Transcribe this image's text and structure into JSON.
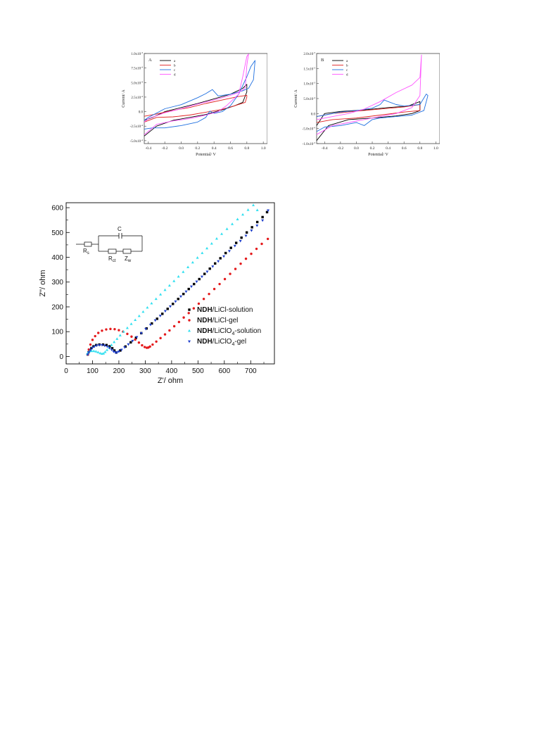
{
  "charts": {
    "cvA": {
      "letter": "A",
      "xlabel": "Potential/ V",
      "ylabel": "Current/ A",
      "xticks": [
        "-0.4",
        "-0.2",
        "0.0",
        "0.2",
        "0.4",
        "0.6",
        "0.8",
        "1.0"
      ],
      "ytick_mantissa": [
        "-5.0x10",
        "-2.5x10",
        "0.0",
        "2.5x10",
        "5.0x10",
        "7.5x10",
        "1.0x10"
      ],
      "ytick_exp": [
        "-4",
        "-4",
        "",
        "-4",
        "-4",
        "-4",
        "-3"
      ]
    },
    "cvB": {
      "letter": "B",
      "xlabel": "Potential/ V",
      "ylabel": "Current/ A",
      "xticks": [
        "-0.4",
        "-0.2",
        "0.0",
        "0.2",
        "0.4",
        "0.6",
        "0.8",
        "1.0"
      ],
      "ytick_mantissa": [
        "-1.0x10",
        "-5.0x10",
        "0.0",
        "5.0x10",
        "1.0x10",
        "1.5x10",
        "2.0x10"
      ],
      "ytick_exp": [
        "-3",
        "-4",
        "",
        "-4",
        "-3",
        "-3",
        "-3"
      ]
    },
    "eis": {
      "xlabel": "Z'/ ohm",
      "ylabel": "Z\"/ ohm",
      "xticks": [
        "0",
        "100",
        "200",
        "300",
        "400",
        "500",
        "600",
        "700"
      ],
      "yticks": [
        "0",
        "100",
        "200",
        "300",
        "400",
        "500",
        "600"
      ],
      "circuit": {
        "c": "C",
        "rs": "R",
        "rs_sub": "s",
        "rct": "R",
        "rct_sub": "ct",
        "zw": "Z",
        "zw_sub": "w"
      }
    }
  },
  "chart_data": [
    {
      "type": "line",
      "xlim": [
        -0.45,
        1.05
      ],
      "ylim": [
        -0.00055,
        0.001
      ],
      "legend_position": "top-left",
      "series": [
        {
          "name": "a",
          "color": "#000000",
          "x": [
            -0.45,
            -0.3,
            -0.1,
            0.1,
            0.3,
            0.5,
            0.65,
            0.75,
            0.8,
            0.8,
            0.75,
            0.6,
            0.4,
            0.2,
            0.0,
            -0.2,
            -0.35,
            -0.45
          ],
          "y": [
            -0.00042,
            -0.00025,
            -0.00015,
            -0.0001,
            -5e-05,
            3e-05,
            0.0001,
            0.00016,
            0.00034,
            0.00047,
            0.0004,
            0.0003,
            0.00022,
            0.00014,
            7e-05,
            0.0,
            -0.0001,
            -0.00015
          ]
        },
        {
          "name": "b",
          "color": "#e02020",
          "x": [
            -0.45,
            -0.3,
            -0.1,
            0.1,
            0.3,
            0.5,
            0.65,
            0.78,
            0.8,
            0.8,
            0.7,
            0.5,
            0.3,
            0.1,
            -0.1,
            -0.3,
            -0.45
          ],
          "y": [
            -0.00018,
            -0.0001,
            -9e-05,
            -6e-05,
            -1e-05,
            4e-05,
            0.0001,
            0.00016,
            0.00025,
            0.00028,
            0.00026,
            0.0002,
            0.00014,
            7e-05,
            2e-05,
            -4e-05,
            -8e-05
          ]
        },
        {
          "name": "c",
          "color": "#1e6fe0",
          "x": [
            -0.45,
            -0.35,
            -0.2,
            0.0,
            0.2,
            0.3,
            0.35,
            0.4,
            0.5,
            0.6,
            0.7,
            0.8,
            0.85,
            0.9,
            0.88,
            0.82,
            0.75,
            0.6,
            0.45,
            0.38,
            0.3,
            0.2,
            0.0,
            -0.2,
            -0.4,
            -0.45
          ],
          "y": [
            -0.0003,
            -0.00028,
            -0.00028,
            -0.00024,
            -0.00018,
            -0.0001,
            1e-05,
            -3e-05,
            0.0,
            0.0001,
            0.0003,
            0.0006,
            0.00078,
            0.00088,
            0.00055,
            0.0004,
            0.00036,
            0.0003,
            0.00027,
            0.00038,
            0.00031,
            0.00024,
            0.00012,
            5e-05,
            -0.0001,
            -0.00015
          ]
        },
        {
          "name": "d",
          "color": "#ff55ff",
          "x": [
            -0.45,
            -0.3,
            -0.1,
            0.1,
            0.3,
            0.45,
            0.55,
            0.7,
            0.75,
            0.8,
            0.82,
            0.8,
            0.78,
            0.7,
            0.6,
            0.4,
            0.2,
            0.0,
            -0.2,
            -0.4,
            -0.45
          ],
          "y": [
            -0.0004,
            -0.00022,
            -0.00016,
            -0.00012,
            -6e-05,
            0.0,
            0.0001,
            0.0003,
            0.0006,
            0.00095,
            0.00099,
            0.0008,
            0.0004,
            0.00033,
            0.00028,
            0.0002,
            0.00013,
            5e-05,
            -2e-05,
            -0.00012,
            -0.00018
          ]
        }
      ]
    },
    {
      "type": "line",
      "xlim": [
        -0.5,
        1.05
      ],
      "ylim": [
        -0.001,
        0.002
      ],
      "legend_position": "top-left",
      "series": [
        {
          "name": "a",
          "color": "#000000",
          "x": [
            -0.5,
            -0.35,
            -0.1,
            0.2,
            0.5,
            0.7,
            0.8,
            0.8,
            0.65,
            0.4,
            0.1,
            -0.2,
            -0.4,
            -0.5
          ],
          "y": [
            -0.0009,
            -0.0004,
            -0.0002,
            -0.00015,
            -8e-05,
            0.0,
            0.0001,
            0.0004,
            0.00025,
            0.0002,
            0.00012,
            7e-05,
            0.0,
            -0.0004
          ]
        },
        {
          "name": "b",
          "color": "#e02020",
          "x": [
            -0.5,
            -0.3,
            0.0,
            0.3,
            0.6,
            0.8,
            0.8,
            0.6,
            0.3,
            0.0,
            -0.3,
            -0.5
          ],
          "y": [
            -0.0003,
            -0.0002,
            -0.00015,
            -5e-05,
            5e-05,
            0.0001,
            0.0003,
            0.00022,
            0.00015,
            8e-05,
            0.0,
            -0.0001
          ]
        },
        {
          "name": "c",
          "color": "#1e6fe0",
          "x": [
            -0.5,
            -0.4,
            -0.2,
            0.0,
            0.1,
            0.2,
            0.3,
            0.5,
            0.7,
            0.85,
            0.9,
            0.88,
            0.8,
            0.6,
            0.5,
            0.4,
            0.35,
            0.3,
            0.2,
            0.0,
            -0.2,
            -0.4,
            -0.5
          ],
          "y": [
            -0.0006,
            -0.00045,
            -0.0004,
            -0.0003,
            -0.0004,
            -0.0002,
            -0.00015,
            -0.0001,
            -5e-05,
            0.0001,
            0.0006,
            0.00065,
            0.0003,
            0.00025,
            0.0003,
            0.0004,
            0.00045,
            0.0003,
            0.00018,
            0.0001,
            5e-05,
            -5e-05,
            -0.0001
          ]
        },
        {
          "name": "d",
          "color": "#ff55ff",
          "x": [
            -0.5,
            -0.3,
            0.0,
            0.3,
            0.5,
            0.7,
            0.8,
            0.82,
            0.8,
            0.7,
            0.5,
            0.3,
            0.1,
            -0.1,
            -0.3,
            -0.5
          ],
          "y": [
            -0.0007,
            -0.0004,
            -0.00025,
            -0.0001,
            0.0,
            0.0002,
            0.0006,
            0.00195,
            0.0012,
            0.00095,
            0.0007,
            0.0004,
            0.00015,
            0.0,
            -0.0001,
            -0.0002
          ]
        }
      ]
    },
    {
      "type": "scatter",
      "xlim": [
        0,
        790
      ],
      "ylim": [
        -30,
        620
      ],
      "legend_position": "right",
      "series": [
        {
          "name_bold": "NDH",
          "name_rest": "/LiCl-solution",
          "name_sub": "",
          "name_tail": "",
          "color": "#000000",
          "marker": "square",
          "x": [
            82,
            85,
            90,
            96,
            104,
            114,
            126,
            140,
            153,
            165,
            175,
            183,
            190,
            205,
            225,
            245,
            265,
            285,
            305,
            325,
            345,
            365,
            385,
            405,
            425,
            445,
            465,
            485,
            505,
            525,
            545,
            565,
            585,
            605,
            625,
            645,
            665,
            685,
            705,
            725,
            745,
            762
          ],
          "y": [
            8,
            17,
            26,
            34,
            41,
            46,
            48,
            48,
            46,
            41,
            33,
            24,
            16,
            24,
            40,
            57,
            75,
            94,
            113,
            133,
            152,
            172,
            192,
            212,
            232,
            252,
            272,
            292,
            312,
            333,
            354,
            375,
            396,
            417,
            438,
            458,
            479,
            500,
            521,
            542,
            562,
            582
          ]
        },
        {
          "name_bold": "NDH",
          "name_rest": "/LiCl-gel",
          "name_sub": "",
          "name_tail": "",
          "color": "#e41a1c",
          "marker": "circle",
          "x": [
            82,
            86,
            92,
            100,
            110,
            122,
            136,
            152,
            168,
            184,
            200,
            216,
            232,
            248,
            262,
            276,
            288,
            298,
            306,
            312,
            318,
            328,
            342,
            358,
            375,
            392,
            410,
            428,
            446,
            465,
            484,
            503,
            522,
            542,
            562,
            582,
            602,
            622,
            642,
            662,
            682,
            702,
            722,
            742,
            765
          ],
          "y": [
            8,
            28,
            48,
            67,
            82,
            95,
            104,
            109,
            111,
            110,
            106,
            100,
            91,
            80,
            68,
            56,
            45,
            38,
            35,
            36,
            40,
            48,
            60,
            74,
            89,
            105,
            122,
            139,
            157,
            175,
            194,
            213,
            232,
            252,
            272,
            292,
            312,
            333,
            353,
            374,
            394,
            414,
            434,
            454,
            474
          ]
        },
        {
          "name_bold": "NDH",
          "name_rest": "/LiClO",
          "name_sub": "4",
          "name_tail": "-solution",
          "color": "#33e0f0",
          "marker": "triangle-up",
          "x": [
            80,
            84,
            90,
            97,
            105,
            113,
            121,
            129,
            136,
            142,
            148,
            155,
            163,
            172,
            182,
            193,
            205,
            218,
            232,
            247,
            262,
            277,
            292,
            308,
            324,
            341,
            358,
            375,
            392,
            409,
            426,
            444,
            462,
            480,
            498,
            516,
            534,
            552,
            571,
            590,
            610,
            630,
            650,
            670,
            690,
            710,
            725
          ],
          "y": [
            10,
            17,
            21,
            22,
            22,
            20,
            17,
            13,
            11,
            12,
            18,
            26,
            35,
            46,
            58,
            71,
            85,
            100,
            115,
            131,
            147,
            163,
            180,
            197,
            214,
            232,
            250,
            268,
            286,
            304,
            322,
            341,
            360,
            379,
            398,
            417,
            436,
            455,
            475,
            494,
            514,
            534,
            553,
            572,
            591,
            610,
            590
          ]
        },
        {
          "name_bold": "NDH",
          "name_rest": "/LiClO",
          "name_sub": "4",
          "name_tail": "-gel",
          "color": "#1f3fcc",
          "marker": "triangle-down",
          "x": [
            82,
            86,
            92,
            99,
            107,
            116,
            126,
            136,
            146,
            156,
            165,
            173,
            180,
            187,
            193,
            200,
            210,
            222,
            236,
            252,
            268,
            285,
            302,
            320,
            338,
            357,
            376,
            395,
            415,
            435,
            455,
            475,
            495,
            515,
            535,
            556,
            577,
            598,
            619,
            640,
            661,
            682,
            703,
            724,
            745,
            766
          ],
          "y": [
            8,
            17,
            26,
            34,
            40,
            44,
            46,
            46,
            44,
            40,
            34,
            27,
            20,
            16,
            16,
            20,
            27,
            37,
            49,
            63,
            78,
            94,
            111,
            128,
            146,
            164,
            183,
            202,
            222,
            242,
            262,
            282,
            302,
            322,
            342,
            363,
            384,
            404,
            425,
            446,
            466,
            487,
            508,
            528,
            549,
            589
          ]
        }
      ]
    }
  ]
}
